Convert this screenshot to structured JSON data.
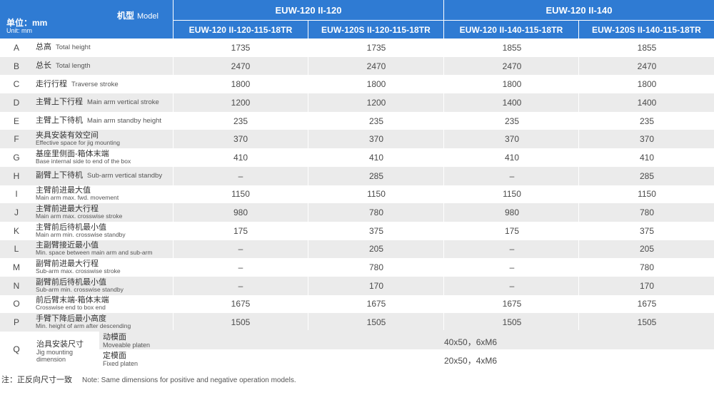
{
  "header": {
    "unit_cn": "单位：mm",
    "unit_en": "Unit: mm",
    "model_cn": "机型",
    "model_en": "Model",
    "groups": [
      "EUW-120 II-120",
      "EUW-120 II-140"
    ],
    "models": [
      "EUW-120 II-120-115-18TR",
      "EUW-120S II-120-115-18TR",
      "EUW-120 II-140-115-18TR",
      "EUW-120S II-140-115-18TR"
    ]
  },
  "rows": [
    {
      "letter": "A",
      "cn": "总高",
      "en": "Total height",
      "values": [
        "1735",
        "1735",
        "1855",
        "1855"
      ]
    },
    {
      "letter": "B",
      "cn": "总长",
      "en": "Total length",
      "values": [
        "2470",
        "2470",
        "2470",
        "2470"
      ]
    },
    {
      "letter": "C",
      "cn": "走行行程",
      "en": "Traverse stroke",
      "values": [
        "1800",
        "1800",
        "1800",
        "1800"
      ]
    },
    {
      "letter": "D",
      "cn": "主臂上下行程",
      "en": "Main arm vertical stroke",
      "values": [
        "1200",
        "1200",
        "1400",
        "1400"
      ]
    },
    {
      "letter": "E",
      "cn": "主臂上下待机",
      "en": "Main arm standby height",
      "values": [
        "235",
        "235",
        "235",
        "235"
      ]
    },
    {
      "letter": "F",
      "cn": "夹具安装有效空间",
      "en": "Effective space for jig mounting",
      "values": [
        "370",
        "370",
        "370",
        "370"
      ]
    },
    {
      "letter": "G",
      "cn": "基座里侧面-箱体末端",
      "en": "Base internal side to end of the box",
      "values": [
        "410",
        "410",
        "410",
        "410"
      ]
    },
    {
      "letter": "H",
      "cn": "副臂上下待机",
      "en": "Sub-arm vertical standby",
      "values": [
        "–",
        "285",
        "–",
        "285"
      ]
    },
    {
      "letter": "I",
      "cn": "主臂前进最大值",
      "en": "Main arm max. fwd. movement",
      "values": [
        "1150",
        "1150",
        "1150",
        "1150"
      ]
    },
    {
      "letter": "J",
      "cn": "主臂前进最大行程",
      "en": "Main arm max. crosswise stroke",
      "values": [
        "980",
        "780",
        "980",
        "780"
      ]
    },
    {
      "letter": "K",
      "cn": "主臂前后待机最小值",
      "en": "Main arm min. crosswise standby",
      "values": [
        "175",
        "375",
        "175",
        "375"
      ]
    },
    {
      "letter": "L",
      "cn": "主副臂接近最小值",
      "en": "Min. space between main arm and sub-arm",
      "values": [
        "–",
        "205",
        "–",
        "205"
      ]
    },
    {
      "letter": "M",
      "cn": "副臂前进最大行程",
      "en": "Sub-arm max. crosswise stroke",
      "values": [
        "–",
        "780",
        "–",
        "780"
      ]
    },
    {
      "letter": "N",
      "cn": "副臂前后待机最小值",
      "en": "Sub-arm min. crosswise standby",
      "values": [
        "–",
        "170",
        "–",
        "170"
      ]
    },
    {
      "letter": "O",
      "cn": "前后臂末端-箱体末端",
      "en": "Crosswise end to box end",
      "values": [
        "1675",
        "1675",
        "1675",
        "1675"
      ]
    },
    {
      "letter": "P",
      "cn": "手臂下降后最小高度",
      "en": "Min. height of arm after descending",
      "values": [
        "1505",
        "1505",
        "1505",
        "1505"
      ]
    }
  ],
  "q": {
    "letter": "Q",
    "cn": "治具安装尺寸",
    "en": "Jig mounting dimension",
    "subs": [
      {
        "cn": "动模面",
        "en": "Moveable platen",
        "value": "40x50，6xM6"
      },
      {
        "cn": "定模面",
        "en": "Fixed platen",
        "value": "20x50，4xM6"
      }
    ]
  },
  "note": {
    "cn": "注：正反向尺寸一致",
    "en": "Note: Same dimensions for positive and negative operation models."
  }
}
